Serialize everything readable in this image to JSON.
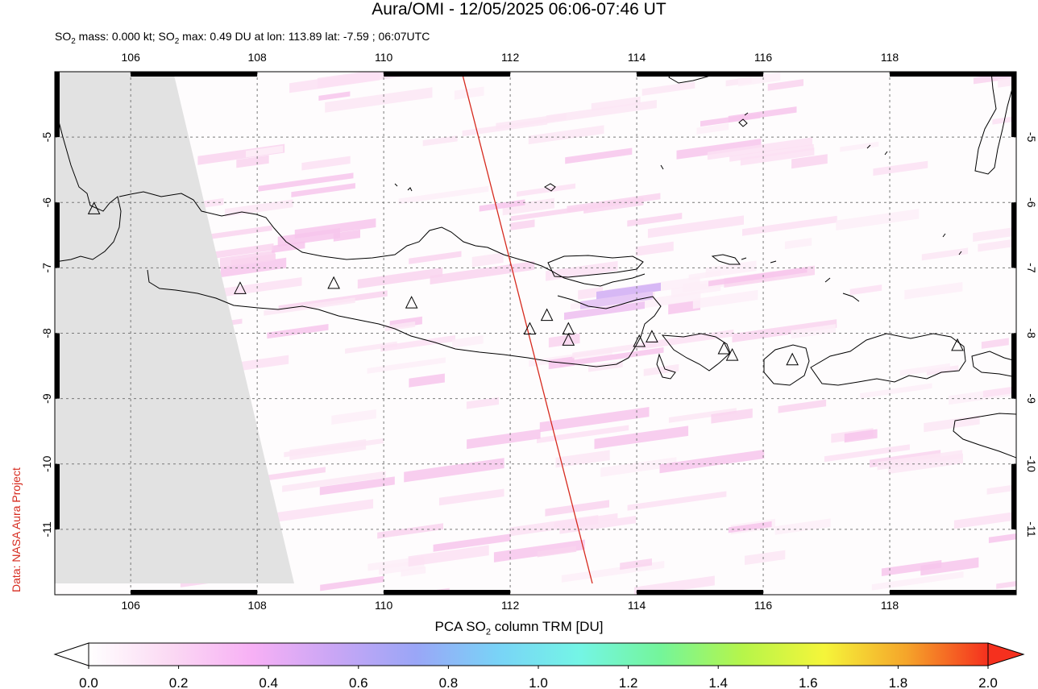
{
  "title": "Aura/OMI - 12/05/2025 06:06-07:46 UT",
  "subtitle": {
    "prefix": "SO",
    "sub": "2",
    "mid": " mass: 0.000 kt; SO",
    "sub2": "2",
    "rest": " max: 0.49 DU at lon: 113.89 lat: -7.59 ; 06:07UTC"
  },
  "credit": "Data: NASA Aura Project",
  "map": {
    "lon_range": [
      104.8,
      120.0
    ],
    "lat_range": [
      -12.0,
      -4.0
    ],
    "lon_ticks": [
      "106",
      "108",
      "110",
      "112",
      "114",
      "116",
      "118"
    ],
    "lat_ticks": [
      "-5",
      "-6",
      "-7",
      "-8",
      "-9",
      "-10",
      "-11"
    ],
    "lon_tick_values": [
      106,
      108,
      110,
      112,
      114,
      116,
      118
    ],
    "lat_tick_values": [
      -5,
      -6,
      -7,
      -8,
      -9,
      -10,
      -11
    ],
    "grid": true,
    "no_data_color": "#e2e2e2",
    "swath_edge_color": "#d62a1e",
    "volcano_markers": [
      {
        "lon": 105.42,
        "lat": -6.1
      },
      {
        "lon": 107.73,
        "lat": -7.32
      },
      {
        "lon": 109.21,
        "lat": -7.24
      },
      {
        "lon": 110.44,
        "lat": -7.54
      },
      {
        "lon": 112.31,
        "lat": -7.94
      },
      {
        "lon": 112.58,
        "lat": -7.73
      },
      {
        "lon": 112.92,
        "lat": -7.94
      },
      {
        "lon": 112.92,
        "lat": -8.11
      },
      {
        "lon": 114.04,
        "lat": -8.13
      },
      {
        "lon": 114.24,
        "lat": -8.06
      },
      {
        "lon": 115.38,
        "lat": -8.24
      },
      {
        "lon": 115.51,
        "lat": -8.34
      },
      {
        "lon": 116.46,
        "lat": -8.41
      },
      {
        "lon": 119.07,
        "lat": -8.19
      }
    ]
  },
  "colorbar": {
    "title_prefix": "PCA SO",
    "title_sub": "2",
    "title_suffix": " column TRM [DU]",
    "labels": [
      "0.0",
      "0.2",
      "0.4",
      "0.6",
      "0.8",
      "1.0",
      "1.2",
      "1.4",
      "1.6",
      "1.8",
      "2.0"
    ],
    "min": 0.0,
    "max": 2.0,
    "stops": [
      "#ffffff",
      "#fbd9f3",
      "#f7b0f5",
      "#c9a6f5",
      "#9aa6f7",
      "#79d3f7",
      "#74f5e6",
      "#74f59a",
      "#b6f54a",
      "#f5f53a",
      "#f5a52a",
      "#f5301e"
    ]
  }
}
